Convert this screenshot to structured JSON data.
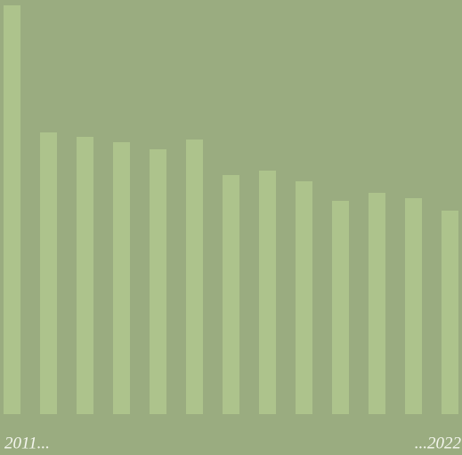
{
  "chart_data": {
    "type": "bar",
    "categories": [
      "2011...",
      null,
      null,
      null,
      null,
      null,
      null,
      null,
      null,
      null,
      null,
      null,
      "...2022"
    ],
    "values": [
      460,
      317,
      312,
      306,
      298,
      309,
      269,
      274,
      262,
      240,
      249,
      243,
      229
    ],
    "color": "#adc38c"
  }
}
